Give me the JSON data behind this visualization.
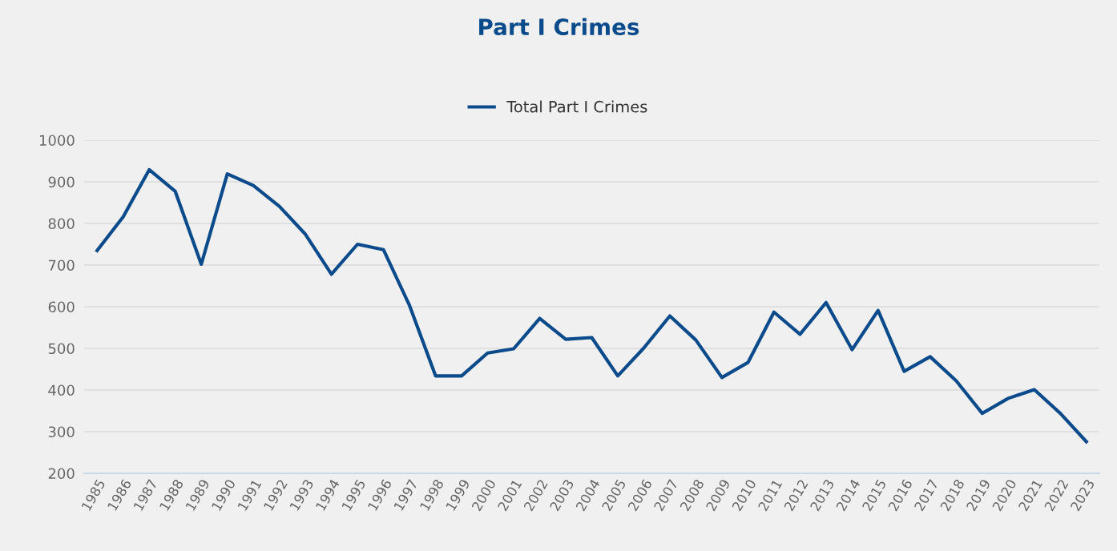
{
  "chart_data": {
    "type": "line",
    "title": "Part I Crimes",
    "categories": [
      "1985",
      "1986",
      "1987",
      "1988",
      "1989",
      "1990",
      "1991",
      "1992",
      "1993",
      "1994",
      "1995",
      "1996",
      "1997",
      "1998",
      "1999",
      "2000",
      "2001",
      "2002",
      "2003",
      "2004",
      "2005",
      "2006",
      "2007",
      "2008",
      "2009",
      "2010",
      "2011",
      "2012",
      "2013",
      "2014",
      "2015",
      "2016",
      "2017",
      "2018",
      "2019",
      "2020",
      "2021",
      "2022",
      "2023"
    ],
    "series": [
      {
        "name": "Total Part I Crimes",
        "color": "#0b4a8b",
        "values": [
          735,
          816,
          929,
          877,
          702,
          919,
          891,
          841,
          774,
          678,
          750,
          737,
          603,
          434,
          434,
          489,
          499,
          572,
          522,
          526,
          434,
          501,
          578,
          520,
          430,
          466,
          587,
          534,
          610,
          497,
          591,
          445,
          480,
          422,
          344,
          380,
          401,
          344,
          276
        ]
      }
    ],
    "ylim": [
      200,
      1000
    ],
    "yticks": [
      200,
      300,
      400,
      500,
      600,
      700,
      800,
      900,
      1000
    ],
    "grid": "y",
    "legend": "top",
    "marker": "none",
    "line_style": "solid"
  }
}
